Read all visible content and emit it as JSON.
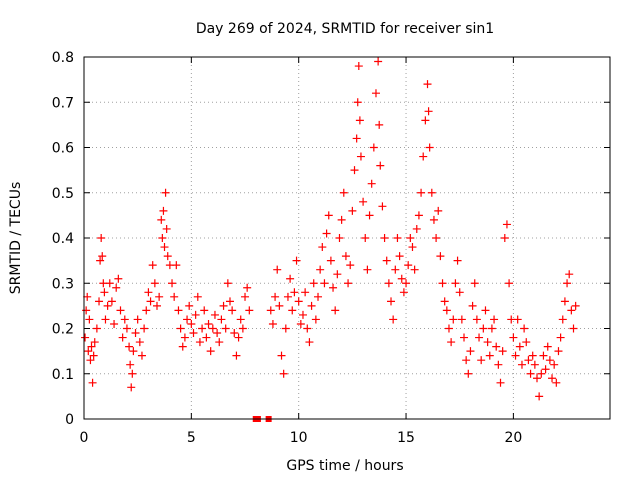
{
  "chart_data": {
    "type": "scatter",
    "title": "Day 269 of 2024, SRMTID for receiver sin1",
    "xlabel": "GPS time / hours",
    "ylabel": "SRMTID / TECUs",
    "xlim": [
      0,
      24.5
    ],
    "ylim": [
      0,
      0.8
    ],
    "x_ticks": [
      0,
      5,
      10,
      15,
      20
    ],
    "y_ticks": [
      0,
      0.1,
      0.2,
      0.3,
      0.4,
      0.5,
      0.6,
      0.7,
      0.8
    ],
    "x_tick_labels": [
      "0",
      "5",
      "10",
      "15",
      "20"
    ],
    "y_tick_labels": [
      "0",
      "0.1",
      "0.2",
      "0.3",
      "0.4",
      "0.5",
      "0.6",
      "0.7",
      "0.8"
    ],
    "grid": true,
    "marker": "+",
    "color": "#ff0000",
    "series": [
      {
        "name": "SRMTID",
        "points": [
          [
            0.05,
            0.18
          ],
          [
            0.1,
            0.24
          ],
          [
            0.15,
            0.27
          ],
          [
            0.2,
            0.15
          ],
          [
            0.25,
            0.22
          ],
          [
            0.3,
            0.13
          ],
          [
            0.35,
            0.16
          ],
          [
            0.4,
            0.08
          ],
          [
            0.45,
            0.14
          ],
          [
            0.5,
            0.17
          ],
          [
            0.6,
            0.2
          ],
          [
            0.7,
            0.26
          ],
          [
            0.75,
            0.35
          ],
          [
            0.8,
            0.4
          ],
          [
            0.85,
            0.36
          ],
          [
            0.9,
            0.3
          ],
          [
            0.95,
            0.28
          ],
          [
            1.0,
            0.22
          ],
          [
            1.1,
            0.25
          ],
          [
            1.2,
            0.3
          ],
          [
            1.3,
            0.26
          ],
          [
            1.4,
            0.21
          ],
          [
            1.5,
            0.29
          ],
          [
            1.6,
            0.31
          ],
          [
            1.7,
            0.24
          ],
          [
            1.8,
            0.18
          ],
          [
            1.9,
            0.22
          ],
          [
            2.0,
            0.2
          ],
          [
            2.1,
            0.16
          ],
          [
            2.15,
            0.12
          ],
          [
            2.2,
            0.07
          ],
          [
            2.25,
            0.1
          ],
          [
            2.3,
            0.15
          ],
          [
            2.4,
            0.19
          ],
          [
            2.5,
            0.22
          ],
          [
            2.6,
            0.17
          ],
          [
            2.7,
            0.14
          ],
          [
            2.8,
            0.2
          ],
          [
            2.9,
            0.24
          ],
          [
            3.0,
            0.28
          ],
          [
            3.1,
            0.26
          ],
          [
            3.2,
            0.34
          ],
          [
            3.3,
            0.3
          ],
          [
            3.4,
            0.25
          ],
          [
            3.5,
            0.27
          ],
          [
            3.6,
            0.44
          ],
          [
            3.65,
            0.4
          ],
          [
            3.7,
            0.46
          ],
          [
            3.75,
            0.38
          ],
          [
            3.8,
            0.5
          ],
          [
            3.85,
            0.42
          ],
          [
            3.9,
            0.36
          ],
          [
            4.0,
            0.34
          ],
          [
            4.1,
            0.3
          ],
          [
            4.2,
            0.27
          ],
          [
            4.3,
            0.34
          ],
          [
            4.4,
            0.24
          ],
          [
            4.5,
            0.2
          ],
          [
            4.6,
            0.16
          ],
          [
            4.7,
            0.18
          ],
          [
            4.8,
            0.22
          ],
          [
            4.9,
            0.25
          ],
          [
            5.0,
            0.21
          ],
          [
            5.1,
            0.19
          ],
          [
            5.2,
            0.23
          ],
          [
            5.3,
            0.27
          ],
          [
            5.4,
            0.17
          ],
          [
            5.5,
            0.2
          ],
          [
            5.6,
            0.24
          ],
          [
            5.7,
            0.18
          ],
          [
            5.8,
            0.21
          ],
          [
            5.9,
            0.15
          ],
          [
            6.0,
            0.2
          ],
          [
            6.1,
            0.23
          ],
          [
            6.2,
            0.19
          ],
          [
            6.3,
            0.17
          ],
          [
            6.4,
            0.22
          ],
          [
            6.5,
            0.25
          ],
          [
            6.6,
            0.2
          ],
          [
            6.7,
            0.3
          ],
          [
            6.8,
            0.26
          ],
          [
            6.9,
            0.24
          ],
          [
            7.0,
            0.19
          ],
          [
            7.1,
            0.14
          ],
          [
            7.2,
            0.18
          ],
          [
            7.3,
            0.22
          ],
          [
            7.4,
            0.2
          ],
          [
            7.5,
            0.27
          ],
          [
            7.6,
            0.29
          ],
          [
            7.7,
            0.24
          ],
          [
            8.0,
            0.0
          ],
          [
            8.1,
            0.0
          ],
          [
            8.6,
            0.0
          ],
          [
            8.7,
            0.24
          ],
          [
            8.8,
            0.21
          ],
          [
            8.9,
            0.27
          ],
          [
            9.0,
            0.33
          ],
          [
            9.1,
            0.25
          ],
          [
            9.2,
            0.14
          ],
          [
            9.3,
            0.1
          ],
          [
            9.4,
            0.2
          ],
          [
            9.5,
            0.27
          ],
          [
            9.6,
            0.31
          ],
          [
            9.7,
            0.24
          ],
          [
            9.8,
            0.28
          ],
          [
            9.9,
            0.35
          ],
          [
            10.0,
            0.26
          ],
          [
            10.1,
            0.21
          ],
          [
            10.2,
            0.23
          ],
          [
            10.3,
            0.28
          ],
          [
            10.4,
            0.2
          ],
          [
            10.5,
            0.17
          ],
          [
            10.6,
            0.25
          ],
          [
            10.7,
            0.3
          ],
          [
            10.8,
            0.22
          ],
          [
            10.9,
            0.27
          ],
          [
            11.0,
            0.33
          ],
          [
            11.1,
            0.38
          ],
          [
            11.2,
            0.3
          ],
          [
            11.3,
            0.41
          ],
          [
            11.4,
            0.45
          ],
          [
            11.5,
            0.35
          ],
          [
            11.6,
            0.29
          ],
          [
            11.7,
            0.24
          ],
          [
            11.8,
            0.32
          ],
          [
            11.9,
            0.4
          ],
          [
            12.0,
            0.44
          ],
          [
            12.1,
            0.5
          ],
          [
            12.2,
            0.36
          ],
          [
            12.3,
            0.3
          ],
          [
            12.4,
            0.34
          ],
          [
            12.5,
            0.46
          ],
          [
            12.6,
            0.55
          ],
          [
            12.7,
            0.62
          ],
          [
            12.75,
            0.7
          ],
          [
            12.8,
            0.78
          ],
          [
            12.85,
            0.66
          ],
          [
            12.9,
            0.58
          ],
          [
            13.0,
            0.48
          ],
          [
            13.1,
            0.4
          ],
          [
            13.2,
            0.33
          ],
          [
            13.3,
            0.45
          ],
          [
            13.4,
            0.52
          ],
          [
            13.5,
            0.6
          ],
          [
            13.6,
            0.72
          ],
          [
            13.7,
            0.79
          ],
          [
            13.75,
            0.65
          ],
          [
            13.8,
            0.56
          ],
          [
            13.9,
            0.47
          ],
          [
            14.0,
            0.4
          ],
          [
            14.1,
            0.35
          ],
          [
            14.2,
            0.3
          ],
          [
            14.3,
            0.26
          ],
          [
            14.4,
            0.22
          ],
          [
            14.5,
            0.33
          ],
          [
            14.6,
            0.4
          ],
          [
            14.7,
            0.36
          ],
          [
            14.8,
            0.31
          ],
          [
            14.9,
            0.28
          ],
          [
            15.0,
            0.3
          ],
          [
            15.1,
            0.34
          ],
          [
            15.2,
            0.4
          ],
          [
            15.3,
            0.38
          ],
          [
            15.4,
            0.33
          ],
          [
            15.5,
            0.42
          ],
          [
            15.6,
            0.45
          ],
          [
            15.7,
            0.5
          ],
          [
            15.8,
            0.58
          ],
          [
            15.9,
            0.66
          ],
          [
            16.0,
            0.74
          ],
          [
            16.05,
            0.68
          ],
          [
            16.1,
            0.6
          ],
          [
            16.2,
            0.5
          ],
          [
            16.3,
            0.44
          ],
          [
            16.4,
            0.4
          ],
          [
            16.5,
            0.46
          ],
          [
            16.6,
            0.36
          ],
          [
            16.7,
            0.3
          ],
          [
            16.8,
            0.26
          ],
          [
            16.9,
            0.24
          ],
          [
            17.0,
            0.2
          ],
          [
            17.1,
            0.17
          ],
          [
            17.2,
            0.22
          ],
          [
            17.3,
            0.3
          ],
          [
            17.4,
            0.35
          ],
          [
            17.5,
            0.28
          ],
          [
            17.6,
            0.22
          ],
          [
            17.7,
            0.18
          ],
          [
            17.8,
            0.13
          ],
          [
            17.9,
            0.1
          ],
          [
            18.0,
            0.15
          ],
          [
            18.1,
            0.25
          ],
          [
            18.2,
            0.3
          ],
          [
            18.3,
            0.22
          ],
          [
            18.4,
            0.18
          ],
          [
            18.5,
            0.13
          ],
          [
            18.6,
            0.2
          ],
          [
            18.7,
            0.24
          ],
          [
            18.8,
            0.17
          ],
          [
            18.9,
            0.14
          ],
          [
            19.0,
            0.2
          ],
          [
            19.1,
            0.22
          ],
          [
            19.2,
            0.16
          ],
          [
            19.3,
            0.12
          ],
          [
            19.4,
            0.08
          ],
          [
            19.5,
            0.15
          ],
          [
            19.6,
            0.4
          ],
          [
            19.7,
            0.43
          ],
          [
            19.8,
            0.3
          ],
          [
            19.9,
            0.22
          ],
          [
            20.0,
            0.18
          ],
          [
            20.1,
            0.14
          ],
          [
            20.2,
            0.22
          ],
          [
            20.3,
            0.16
          ],
          [
            20.4,
            0.12
          ],
          [
            20.5,
            0.2
          ],
          [
            20.6,
            0.17
          ],
          [
            20.7,
            0.13
          ],
          [
            20.8,
            0.1
          ],
          [
            20.9,
            0.14
          ],
          [
            21.0,
            0.12
          ],
          [
            21.1,
            0.09
          ],
          [
            21.2,
            0.05
          ],
          [
            21.3,
            0.1
          ],
          [
            21.4,
            0.14
          ],
          [
            21.5,
            0.11
          ],
          [
            21.6,
            0.16
          ],
          [
            21.7,
            0.13
          ],
          [
            21.8,
            0.09
          ],
          [
            21.9,
            0.12
          ],
          [
            22.0,
            0.08
          ],
          [
            22.1,
            0.15
          ],
          [
            22.2,
            0.18
          ],
          [
            22.3,
            0.22
          ],
          [
            22.4,
            0.26
          ],
          [
            22.5,
            0.3
          ],
          [
            22.6,
            0.32
          ],
          [
            22.7,
            0.24
          ],
          [
            22.8,
            0.2
          ],
          [
            22.9,
            0.25
          ]
        ]
      }
    ]
  }
}
